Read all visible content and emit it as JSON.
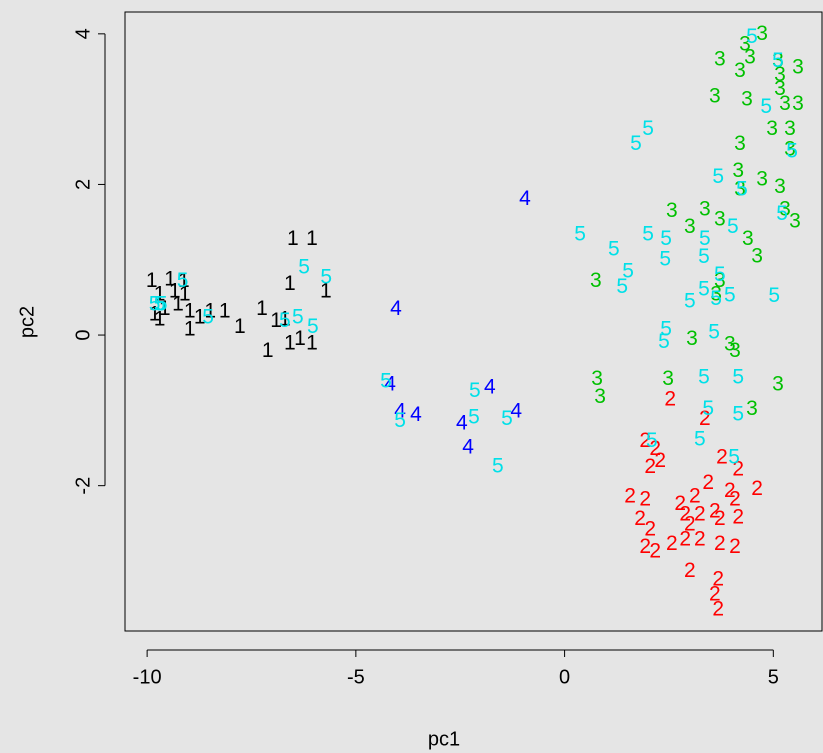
{
  "chart_data": {
    "type": "scatter",
    "xlabel": "pc1",
    "ylabel": "pc2",
    "xlim": [
      -10.53,
      6.19
    ],
    "ylim": [
      -3.93,
      4.29
    ],
    "xticks": [
      -10,
      -5,
      0,
      5
    ],
    "yticks": [
      -2,
      0,
      2,
      4
    ],
    "series": [
      {
        "name": "1",
        "color": "#000000",
        "x": [
          -9.89,
          -9.45,
          -9.12,
          -9.7,
          -9.34,
          -9.1,
          -9.82,
          -9.58,
          -9.26,
          -9.7,
          -8.98,
          -8.49,
          -8.14,
          -8.74,
          -7.78,
          -8.98,
          -7.25,
          -6.91,
          -7.11,
          -6.58,
          -6.34,
          -6.05,
          -6.58,
          -6.51,
          -6.05,
          -5.72,
          -6.7
        ],
        "values": [
          0.71,
          0.73,
          0.71,
          0.53,
          0.57,
          0.53,
          0.27,
          0.34,
          0.4,
          0.2,
          0.31,
          0.31,
          0.31,
          0.23,
          0.1,
          0.07,
          0.34,
          0.18,
          -0.22,
          -0.12,
          -0.06,
          -0.12,
          0.67,
          1.27,
          1.27,
          0.57,
          0.2
        ]
      },
      {
        "name": "2",
        "color": "#ff0000",
        "x": [
          2.53,
          3.36,
          1.93,
          2.17,
          2.05,
          2.29,
          3.77,
          4.16,
          4.61,
          1.57,
          1.93,
          2.77,
          3.12,
          3.44,
          3.96,
          4.08,
          2.89,
          3.24,
          3.6,
          4.16,
          1.81,
          2.05,
          3.0,
          3.72,
          1.93,
          2.57,
          2.89,
          3.24,
          3.72,
          4.08,
          2.17,
          3.0,
          3.68,
          3.6,
          3.68
        ],
        "values": [
          -0.86,
          -1.12,
          -1.41,
          -1.52,
          -1.76,
          -1.68,
          -1.63,
          -1.79,
          -2.05,
          -2.15,
          -2.19,
          -2.25,
          -2.15,
          -1.97,
          -2.08,
          -2.19,
          -2.39,
          -2.39,
          -2.35,
          -2.43,
          -2.45,
          -2.59,
          -2.52,
          -2.45,
          -2.82,
          -2.78,
          -2.72,
          -2.72,
          -2.78,
          -2.82,
          -2.88,
          -3.14,
          -3.25,
          -3.45,
          -3.65
        ]
      },
      {
        "name": "3",
        "color": "#00c000",
        "x": [
          4.73,
          4.32,
          4.44,
          3.72,
          4.2,
          5.11,
          5.16,
          5.59,
          5.16,
          5.28,
          5.59,
          3.6,
          4.37,
          4.97,
          5.4,
          4.2,
          5.4,
          4.16,
          4.73,
          5.16,
          4.2,
          3.36,
          2.57,
          3.0,
          3.72,
          5.28,
          5.52,
          4.39,
          4.61,
          3.72,
          3.63,
          0.75,
          3.05,
          3.96,
          4.08,
          0.78,
          0.85,
          2.48,
          4.49,
          5.11
        ],
        "values": [
          3.99,
          3.85,
          3.68,
          3.65,
          3.5,
          3.63,
          3.45,
          3.55,
          3.26,
          3.06,
          3.06,
          3.16,
          3.12,
          2.73,
          2.73,
          2.53,
          2.46,
          2.17,
          2.06,
          1.96,
          1.93,
          1.66,
          1.64,
          1.43,
          1.53,
          1.66,
          1.5,
          1.27,
          1.04,
          0.71,
          0.53,
          0.71,
          -0.06,
          -0.13,
          -0.22,
          -0.59,
          -0.83,
          -0.59,
          -0.99,
          -0.66
        ]
      },
      {
        "name": "4",
        "color": "#0000ff",
        "x": [
          -0.95,
          -4.04,
          -4.18,
          -3.94,
          -3.56,
          -2.46,
          -2.31,
          -1.79,
          -1.16
        ],
        "values": [
          1.8,
          0.34,
          -0.66,
          -1.02,
          -1.07,
          -1.18,
          -1.5,
          -0.7,
          -1.02
        ]
      },
      {
        "name": "5",
        "color": "#00e0e8",
        "x": [
          4.49,
          5.11,
          4.83,
          5.45,
          2.0,
          1.71,
          3.68,
          4.25,
          5.21,
          0.37,
          1.18,
          2.0,
          2.43,
          3.36,
          4.03,
          1.52,
          1.38,
          2.41,
          3.34,
          3.72,
          3.34,
          3.63,
          3.96,
          3.0,
          5.02,
          2.43,
          2.38,
          3.58,
          3.34,
          4.16,
          3.44,
          4.16,
          3.24,
          2.09,
          4.06,
          -1.6,
          -2.15,
          -2.17,
          -1.38,
          -4.28,
          -3.94,
          -6.24,
          -5.71,
          -6.7,
          -6.39,
          -6.03,
          -8.54,
          -9.82,
          -9.65,
          -9.15,
          -9.7
        ],
        "values": [
          3.95,
          3.63,
          3.02,
          2.43,
          2.73,
          2.53,
          2.09,
          1.93,
          1.6,
          1.33,
          1.13,
          1.33,
          1.27,
          1.27,
          1.43,
          0.84,
          0.63,
          1.0,
          1.03,
          0.79,
          0.6,
          0.47,
          0.52,
          0.44,
          0.51,
          0.07,
          -0.1,
          0.03,
          -0.57,
          -0.57,
          -0.99,
          -1.06,
          -1.39,
          -1.41,
          -1.63,
          -1.75,
          -0.75,
          -1.1,
          -1.12,
          -0.62,
          -1.15,
          0.89,
          0.76,
          0.18,
          0.23,
          0.1,
          0.23,
          0.4,
          0.4,
          0.71,
          0.4
        ]
      }
    ]
  }
}
